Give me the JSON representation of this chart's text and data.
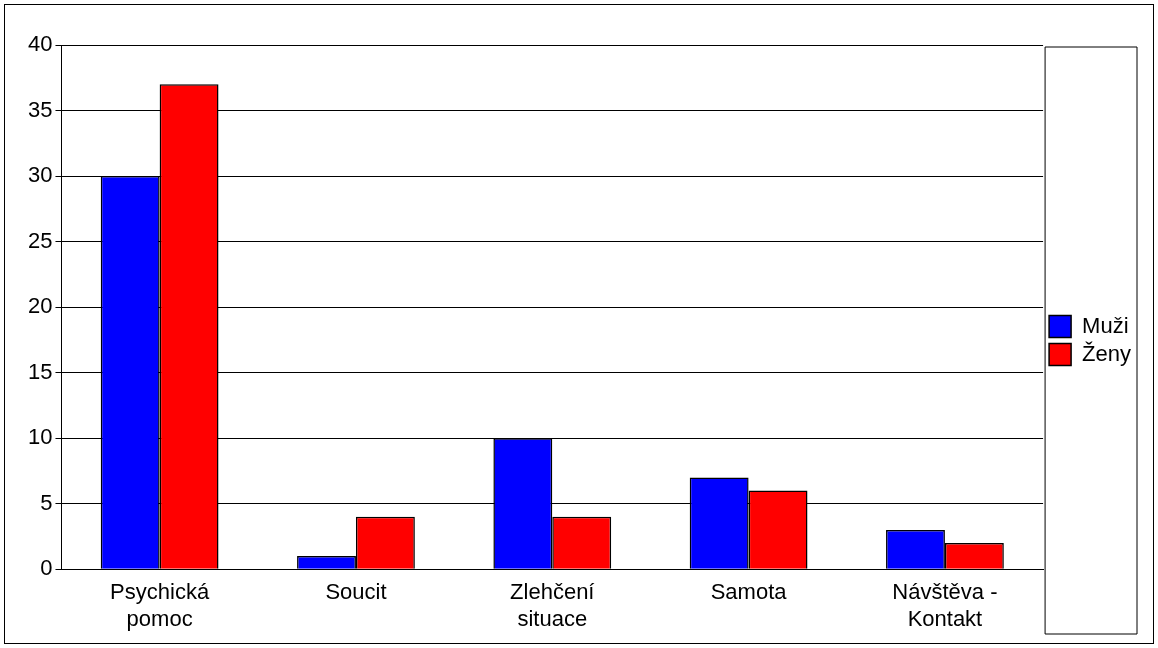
{
  "chart_data": {
    "type": "bar",
    "categories": [
      "Psychická pomoc",
      "Soucit",
      "Zlehčení situace",
      "Samota",
      "Návštěva - Kontakt"
    ],
    "series": [
      {
        "name": "Muži",
        "color": "#0000ff",
        "values": [
          30,
          1,
          10,
          7,
          3
        ]
      },
      {
        "name": "Ženy",
        "color": "#ff0000",
        "values": [
          37,
          4,
          4,
          6,
          2
        ]
      }
    ],
    "ylim": [
      0,
      40
    ],
    "yticks": [
      0,
      5,
      10,
      15,
      20,
      25,
      30,
      35,
      40
    ],
    "grid": "y",
    "legend": "right"
  }
}
